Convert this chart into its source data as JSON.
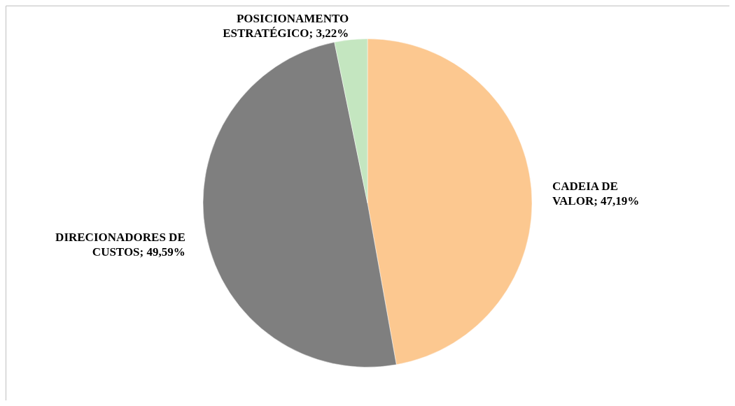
{
  "chart_data": {
    "type": "pie",
    "categories": [
      "CADEIA DE VALOR",
      "DIRECIONADORES DE CUSTOS",
      "POSICIONAMENTO ESTRATÉGICO"
    ],
    "values": [
      47.19,
      49.59,
      3.22
    ],
    "value_labels": [
      "47,19%",
      "49,59%",
      "3,22%"
    ],
    "colors": [
      "#fcc890",
      "#7f7f7f",
      "#c4e6c0"
    ]
  }
}
